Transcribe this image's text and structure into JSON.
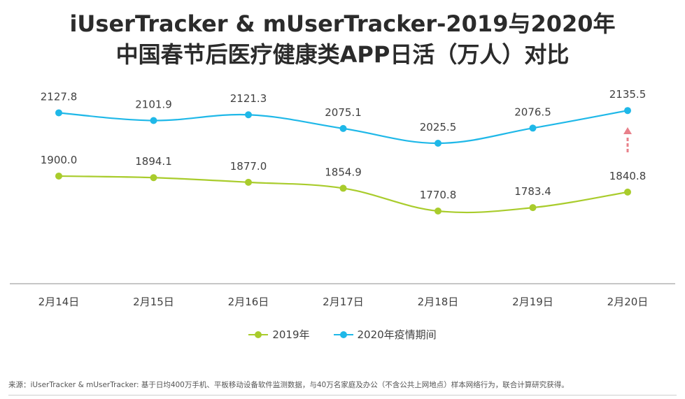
{
  "title_line1": "iUserTracker & mUserTracker-2019与2020年",
  "title_line2": "中国春节后医疗健康类APP日活（万人）对比",
  "source": "来源：iUserTracker & mUserTracker: 基于日均400万手机、平板移动设备软件监测数据，与40万名家庭及办公（不含公共上网地点）样本网络行为，联合计算研究获得。",
  "colors": {
    "series_2019": "#a9cc2c",
    "series_2020": "#1fb8e8",
    "arrow": "#e8808a",
    "axis": "#8c8c8c",
    "label_text": "#404040"
  },
  "chart_data": {
    "type": "line",
    "title": "iUserTracker & mUserTracker-2019与2020年中国春节后医疗健康类APP日活（万人）对比",
    "categories": [
      "2月14日",
      "2月15日",
      "2月16日",
      "2月17日",
      "2月18日",
      "2月19日",
      "2月20日"
    ],
    "series": [
      {
        "name": "2019年",
        "values": [
          1900.0,
          1894.1,
          1877.0,
          1854.9,
          1770.8,
          1783.4,
          1840.8
        ],
        "labels": [
          "1900.0",
          "1894.1",
          "1877.0",
          "1854.9",
          "1770.8",
          "1783.4",
          "1840.8"
        ],
        "color": "#a9cc2c"
      },
      {
        "name": "2020年疫情期间",
        "values": [
          2127.8,
          2101.9,
          2121.3,
          2075.1,
          2025.5,
          2076.5,
          2135.5
        ],
        "labels": [
          "2127.8",
          "2101.9",
          "2121.3",
          "2075.1",
          "2025.5",
          "2076.5",
          "2135.5"
        ],
        "color": "#1fb8e8"
      }
    ],
    "legend_position": "bottom",
    "grid": false,
    "annotation": "upward dashed arrow below the last point of the 2020 series"
  }
}
